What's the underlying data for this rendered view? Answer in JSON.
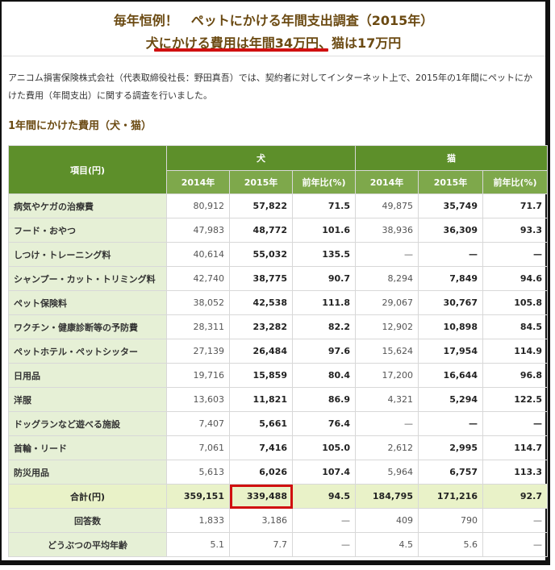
{
  "header": {
    "line1": "毎年恒例！　ペットにかける年間支出調査（2015年）",
    "line2": "犬にかける費用は年間34万円、猫は17万円"
  },
  "intro": "アニコム損害保険株式会社（代表取締役社長：野田真吾）では、契約者に対してインターネット上で、2015年の1年間にペットにかけた費用（年間支出）に関する調査を行いました。",
  "section_title": "1年間にかけた費用（犬・猫）",
  "table": {
    "item_header": "項目(円)",
    "dog_header": "犬",
    "cat_header": "猫",
    "sub_headers": [
      "2014年",
      "2015年",
      "前年比(%)",
      "2014年",
      "2015年",
      "前年比(%)"
    ],
    "rows": [
      {
        "label": "病気やケガの治療費",
        "v": [
          "80,912",
          "57,822",
          "71.5",
          "49,875",
          "35,749",
          "71.7"
        ]
      },
      {
        "label": "フード・おやつ",
        "v": [
          "47,983",
          "48,772",
          "101.6",
          "38,936",
          "36,309",
          "93.3"
        ]
      },
      {
        "label": "しつけ・トレーニング料",
        "v": [
          "40,614",
          "55,032",
          "135.5",
          "—",
          "—",
          "—"
        ]
      },
      {
        "label": "シャンプー・カット・トリミング料",
        "v": [
          "42,740",
          "38,775",
          "90.7",
          "8,294",
          "7,849",
          "94.6"
        ]
      },
      {
        "label": "ペット保険料",
        "v": [
          "38,052",
          "42,538",
          "111.8",
          "29,067",
          "30,767",
          "105.8"
        ]
      },
      {
        "label": "ワクチン・健康診断等の予防費",
        "v": [
          "28,311",
          "23,282",
          "82.2",
          "12,902",
          "10,898",
          "84.5"
        ]
      },
      {
        "label": "ペットホテル・ペットシッター",
        "v": [
          "27,139",
          "26,484",
          "97.6",
          "15,624",
          "17,954",
          "114.9"
        ]
      },
      {
        "label": "日用品",
        "v": [
          "19,716",
          "15,859",
          "80.4",
          "17,200",
          "16,644",
          "96.8"
        ]
      },
      {
        "label": "洋服",
        "v": [
          "13,603",
          "11,821",
          "86.9",
          "4,321",
          "5,294",
          "122.5"
        ]
      },
      {
        "label": "ドッグランなど遊べる施設",
        "v": [
          "7,407",
          "5,661",
          "76.4",
          "—",
          "—",
          "—"
        ]
      },
      {
        "label": "首輪・リード",
        "v": [
          "7,061",
          "7,416",
          "105.0",
          "2,612",
          "2,995",
          "114.7"
        ]
      },
      {
        "label": "防災用品",
        "v": [
          "5,613",
          "6,026",
          "107.4",
          "5,964",
          "6,757",
          "113.3"
        ]
      }
    ],
    "total": {
      "label": "合計(円)",
      "v": [
        "359,151",
        "339,488",
        "94.5",
        "184,795",
        "171,216",
        "92.7"
      ]
    },
    "responses": {
      "label": "回答数",
      "v": [
        "1,833",
        "3,186",
        "—",
        "409",
        "790",
        "—"
      ]
    },
    "avg_age": {
      "label": "どうぶつの平均年齢",
      "v": [
        "5.1",
        "7.7",
        "—",
        "4.5",
        "5.6",
        "—"
      ]
    }
  },
  "colors": {
    "header_green": "#5d8f2a",
    "highlight_red": "#d01010",
    "title_brown": "#6b4a12"
  }
}
